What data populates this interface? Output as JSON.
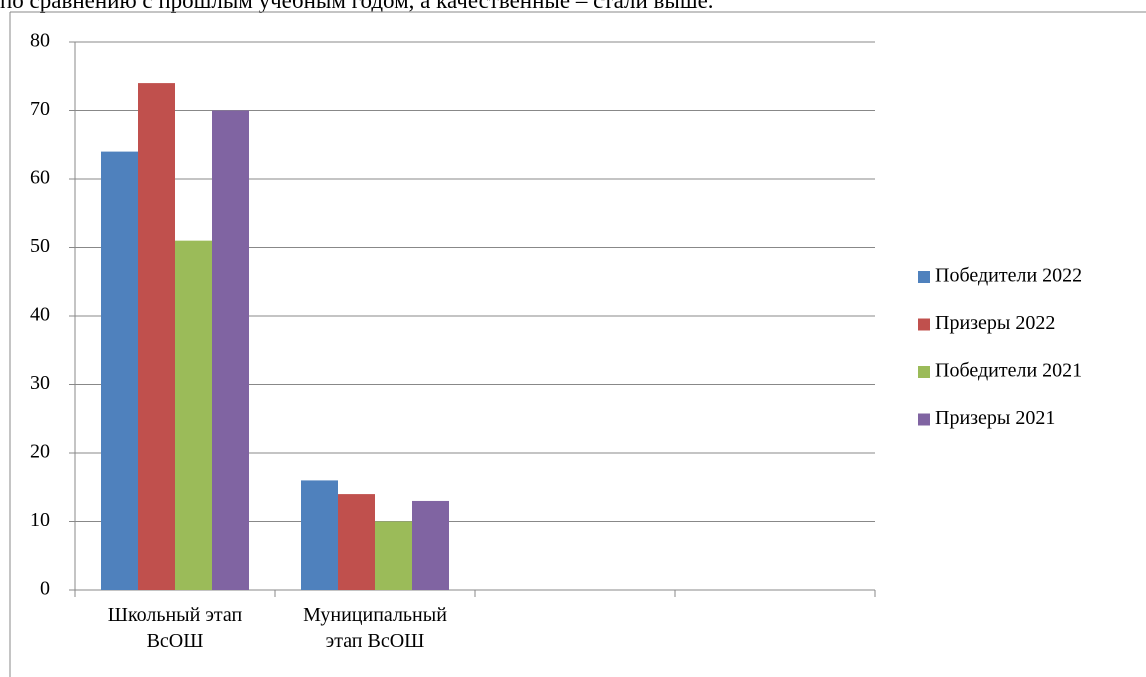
{
  "page_text": "по сравнению с прошлым учебным годом, а качественные – стали выше.",
  "chart_data": {
    "type": "bar",
    "categories": [
      "Школьный этап\nВсОШ",
      "Муниципальный\nэтап ВсОШ",
      null,
      null
    ],
    "series": [
      {
        "name": "Победители 2022",
        "color": "#4f81bd",
        "values": [
          64,
          16,
          null,
          null
        ]
      },
      {
        "name": "Призеры 2022",
        "color": "#c0504d",
        "values": [
          74,
          14,
          null,
          null
        ]
      },
      {
        "name": "Победители 2021",
        "color": "#9bbb59",
        "values": [
          51,
          10,
          null,
          null
        ]
      },
      {
        "name": "Призеры 2021",
        "color": "#8064a2",
        "values": [
          70,
          13,
          null,
          null
        ]
      }
    ],
    "ylim": [
      0,
      80
    ],
    "yticks": [
      0,
      10,
      20,
      30,
      40,
      50,
      60,
      70,
      80
    ],
    "grid": true,
    "legend": "right"
  }
}
